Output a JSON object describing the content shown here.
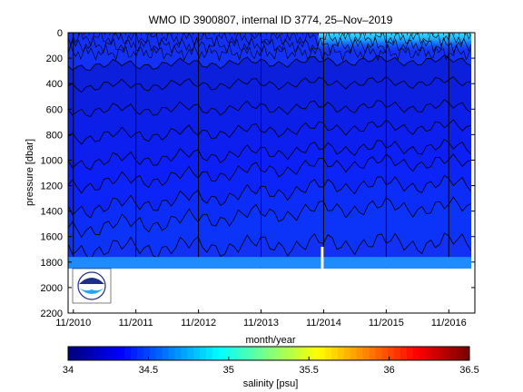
{
  "chart_data": {
    "type": "heatmap",
    "title": "WMO ID 3900807, internal ID 3774, 25–Nov–2019",
    "xlabel": "month/year",
    "ylabel": "pressure [dbar]",
    "x_ticks": [
      "11/2010",
      "11/2011",
      "11/2012",
      "11/2013",
      "11/2014",
      "11/2015",
      "11/2016"
    ],
    "xlim": [
      "10/2010",
      "04/2017"
    ],
    "y_ticks": [
      0,
      200,
      400,
      600,
      800,
      1000,
      1200,
      1400,
      1600,
      1800,
      2000,
      2200
    ],
    "ylim": [
      2200,
      0
    ],
    "y_reversed": true,
    "data_max_pressure": 1850,
    "colorbar": {
      "label": "salinity [psu]",
      "ticks": [
        34,
        34.5,
        35,
        35.5,
        36,
        36.5
      ],
      "range": [
        34,
        36.5
      ],
      "colormap": "jet"
    },
    "contour_levels_psu": [
      34.05,
      34.1,
      34.15,
      34.2,
      34.25,
      34.3,
      34.35,
      34.4,
      34.45
    ],
    "contour_depths_dbar": [
      {
        "level": 34.45,
        "start": 1700,
        "end": 1650
      },
      {
        "level": 34.4,
        "start": 1540,
        "end": 1370
      },
      {
        "level": 34.35,
        "start": 1390,
        "end": 1190
      },
      {
        "level": 34.3,
        "start": 1200,
        "end": 1020
      },
      {
        "level": 34.25,
        "start": 1020,
        "end": 900
      },
      {
        "level": 34.2,
        "start": 820,
        "end": 740
      },
      {
        "level": 34.15,
        "start": 610,
        "end": 580
      },
      {
        "level": 34.1,
        "start": 420,
        "end": 390
      },
      {
        "level": 34.05,
        "start": 260,
        "end": 220
      }
    ],
    "surface_high_salinity_start": "10/2014",
    "logo": "NOAA"
  }
}
